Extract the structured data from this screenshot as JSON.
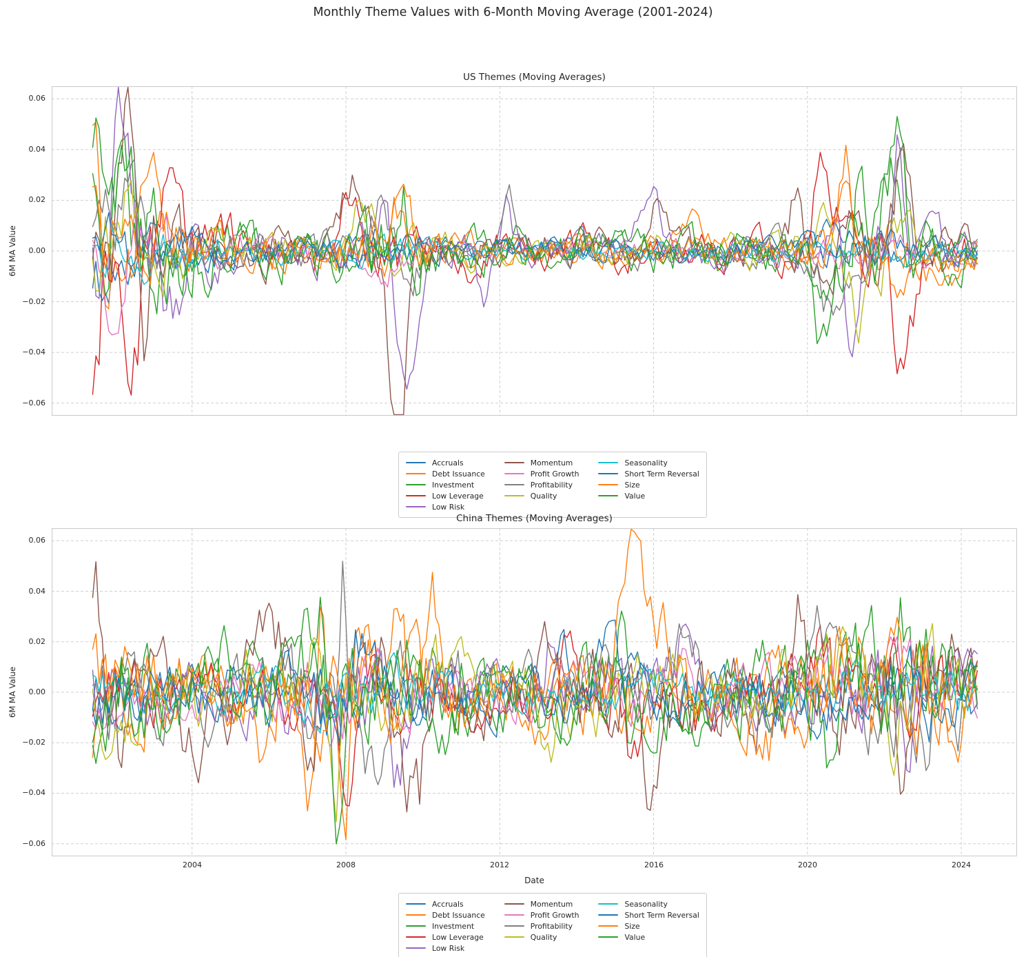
{
  "suptitle": "Monthly Theme Values with 6-Month Moving Average (2001-2024)",
  "chart_data": [
    {
      "type": "line",
      "title": "US Themes (Moving Averages)",
      "ylabel": "6M MA Value",
      "xlabel": "",
      "x_start": 2001.4167,
      "x_end": 2024.4167,
      "points_per_year": 12,
      "xlim": [
        2000.35,
        2025.45
      ],
      "ylim": [
        -0.065,
        0.065
      ],
      "grid": true,
      "legend_position": "below-center",
      "legend_columns": 3,
      "xticks": [
        {
          "v": 2004,
          "label": "2004"
        },
        {
          "v": 2008,
          "label": "2008"
        },
        {
          "v": 2012,
          "label": "2012"
        },
        {
          "v": 2016,
          "label": "2016"
        },
        {
          "v": 2020,
          "label": "2020"
        },
        {
          "v": 2024,
          "label": "2024"
        }
      ],
      "yticks": [
        {
          "v": 0.06,
          "label": "0.06"
        },
        {
          "v": 0.04,
          "label": "0.04"
        },
        {
          "v": 0.02,
          "label": "0.02"
        },
        {
          "v": 0.0,
          "label": "0.00"
        },
        {
          "v": -0.02,
          "label": "−0.02"
        },
        {
          "v": -0.04,
          "label": "−0.04"
        },
        {
          "v": -0.06,
          "label": "−0.06"
        }
      ],
      "seed": 20010,
      "noise_envelope": {
        "base": 0.7,
        "start_k": 1.9,
        "start_tau": 2.0,
        "events": [
          [
            2003.0,
            0.3,
            0.8
          ],
          [
            2009.2,
            0.6,
            0.7
          ],
          [
            2021.5,
            0.8,
            1.1
          ]
        ]
      },
      "series": [
        {
          "name": "Accruals",
          "color": "#1f77b4",
          "amp": 0.0035,
          "anchors": [
            [
              2001.6,
              -0.01,
              0.25
            ],
            [
              2008.6,
              0.008,
              0.3
            ],
            [
              2020.8,
              0.008,
              0.3
            ]
          ]
        },
        {
          "name": "Debt Issuance",
          "color": "#ff7f0e",
          "amp": 0.005,
          "anchors": [
            [
              2001.5,
              0.034,
              0.12
            ],
            [
              2003.0,
              0.031,
              0.25
            ],
            [
              2009.45,
              0.031,
              0.18
            ],
            [
              2016.9,
              0.012,
              0.3
            ],
            [
              2021.0,
              0.034,
              0.18
            ],
            [
              2023.5,
              -0.008,
              0.5
            ]
          ]
        },
        {
          "name": "Investment",
          "color": "#2ca02c",
          "amp": 0.006,
          "anchors": [
            [
              2001.45,
              0.045,
              0.1
            ],
            [
              2002.2,
              0.025,
              0.15
            ],
            [
              2004.9,
              0.012,
              0.3
            ],
            [
              2012.5,
              0.008,
              0.3
            ],
            [
              2020.5,
              -0.025,
              0.2
            ],
            [
              2022.2,
              0.03,
              0.2
            ]
          ]
        },
        {
          "name": "Low Leverage",
          "color": "#d62728",
          "amp": 0.006,
          "anchors": [
            [
              2001.5,
              -0.043,
              0.12
            ],
            [
              2002.35,
              -0.04,
              0.25
            ],
            [
              2003.3,
              0.019,
              0.2
            ],
            [
              2008.05,
              0.018,
              0.25
            ],
            [
              2011.0,
              -0.01,
              0.3
            ],
            [
              2020.3,
              0.034,
              0.18
            ],
            [
              2021.05,
              0.03,
              0.15
            ],
            [
              2022.5,
              -0.048,
              0.25
            ]
          ]
        },
        {
          "name": "Low Risk",
          "color": "#9467bd",
          "amp": 0.006,
          "anchors": [
            [
              2002.2,
              0.051,
              0.2
            ],
            [
              2003.5,
              -0.029,
              0.25
            ],
            [
              2009.0,
              0.041,
              0.13
            ],
            [
              2009.6,
              -0.049,
              0.22
            ],
            [
              2011.6,
              -0.019,
              0.15
            ],
            [
              2012.2,
              0.026,
              0.12
            ],
            [
              2015.9,
              0.021,
              0.25
            ],
            [
              2021.2,
              -0.035,
              0.18
            ],
            [
              2022.4,
              0.04,
              0.13
            ]
          ]
        },
        {
          "name": "Momentum",
          "color": "#8c564b",
          "amp": 0.006,
          "anchors": [
            [
              2001.55,
              0.033,
              0.15
            ],
            [
              2002.35,
              0.05,
              0.18
            ],
            [
              2002.8,
              -0.033,
              0.12
            ],
            [
              2008.2,
              0.025,
              0.35
            ],
            [
              2009.35,
              -0.064,
              0.22
            ],
            [
              2016.2,
              0.018,
              0.25
            ],
            [
              2019.7,
              0.026,
              0.12
            ],
            [
              2022.45,
              0.034,
              0.2
            ]
          ]
        },
        {
          "name": "Profit Growth",
          "color": "#e377c2",
          "amp": 0.0035,
          "anchors": [
            [
              2002.0,
              -0.017,
              0.2
            ],
            [
              2002.55,
              0.016,
              0.12
            ],
            [
              2008.8,
              -0.01,
              0.3
            ]
          ]
        },
        {
          "name": "Profitability",
          "color": "#7f7f7f",
          "amp": 0.005,
          "anchors": [
            [
              2002.35,
              0.032,
              0.2
            ],
            [
              2008.9,
              0.019,
              0.2
            ],
            [
              2009.6,
              -0.027,
              0.2
            ],
            [
              2012.2,
              0.026,
              0.13
            ],
            [
              2020.6,
              -0.02,
              0.2
            ],
            [
              2022.4,
              0.031,
              0.18
            ]
          ]
        },
        {
          "name": "Quality",
          "color": "#bcbd22",
          "amp": 0.005,
          "anchors": [
            [
              2002.3,
              0.014,
              0.2
            ],
            [
              2008.4,
              0.015,
              0.25
            ],
            [
              2020.4,
              0.018,
              0.12
            ],
            [
              2021.35,
              -0.025,
              0.2
            ],
            [
              2022.7,
              0.014,
              0.25
            ]
          ]
        },
        {
          "name": "Seasonality",
          "color": "#17becf",
          "amp": 0.0028,
          "anchors": []
        },
        {
          "name": "Short Term Reversal",
          "color": "#1f77b4",
          "amp": 0.0035,
          "anchors": [
            [
              2001.5,
              0.008,
              0.2
            ]
          ]
        },
        {
          "name": "Size",
          "color": "#ff7f0e",
          "amp": 0.0045,
          "anchors": [
            [
              2001.45,
              0.02,
              0.15
            ],
            [
              2009.3,
              0.019,
              0.25
            ],
            [
              2021.0,
              0.02,
              0.25
            ],
            [
              2022.8,
              -0.012,
              0.7
            ]
          ]
        },
        {
          "name": "Value",
          "color": "#2ca02c",
          "amp": 0.007,
          "anchors": [
            [
              2001.45,
              0.051,
              0.12
            ],
            [
              2002.2,
              0.038,
              0.2
            ],
            [
              2009.45,
              0.027,
              0.15
            ],
            [
              2020.5,
              -0.042,
              0.25
            ],
            [
              2021.35,
              0.027,
              0.15
            ],
            [
              2022.3,
              0.055,
              0.2
            ]
          ]
        }
      ]
    },
    {
      "type": "line",
      "title": "China Themes (Moving Averages)",
      "ylabel": "6M MA Value",
      "xlabel": "Date",
      "x_start": 2001.4167,
      "x_end": 2024.4167,
      "points_per_year": 12,
      "xlim": [
        2000.35,
        2025.45
      ],
      "ylim": [
        -0.065,
        0.065
      ],
      "grid": true,
      "legend_position": "below-center",
      "legend_columns": 3,
      "xticks": [
        {
          "v": 2004,
          "label": "2004"
        },
        {
          "v": 2008,
          "label": "2008"
        },
        {
          "v": 2012,
          "label": "2012"
        },
        {
          "v": 2016,
          "label": "2016"
        },
        {
          "v": 2020,
          "label": "2020"
        },
        {
          "v": 2024,
          "label": "2024"
        }
      ],
      "yticks": [
        {
          "v": 0.06,
          "label": "0.06"
        },
        {
          "v": 0.04,
          "label": "0.04"
        },
        {
          "v": 0.02,
          "label": "0.02"
        },
        {
          "v": 0.0,
          "label": "0.00"
        },
        {
          "v": -0.02,
          "label": "−0.02"
        },
        {
          "v": -0.04,
          "label": "−0.04"
        },
        {
          "v": -0.06,
          "label": "−0.06"
        }
      ],
      "seed": 20020,
      "noise_envelope": {
        "base": 1.0,
        "start_k": 0.5,
        "start_tau": 1.2,
        "events": [
          [
            2007.5,
            0.5,
            1.0
          ],
          [
            2009.8,
            0.3,
            0.8
          ],
          [
            2015.6,
            0.25,
            0.8
          ],
          [
            2021.5,
            0.35,
            1.5
          ],
          [
            2023.2,
            0.3,
            1.5
          ]
        ]
      },
      "series": [
        {
          "name": "Accruals",
          "color": "#1f77b4",
          "amp": 0.005,
          "anchors": [
            [
              2013.6,
              0.018,
              0.2
            ]
          ]
        },
        {
          "name": "Debt Issuance",
          "color": "#ff7f0e",
          "amp": 0.008,
          "anchors": [
            [
              2005.8,
              -0.025,
              0.25
            ],
            [
              2007.0,
              -0.053,
              0.13
            ],
            [
              2007.35,
              0.03,
              0.1
            ],
            [
              2007.95,
              -0.046,
              0.12
            ],
            [
              2008.4,
              0.03,
              0.15
            ],
            [
              2009.3,
              0.037,
              0.2
            ],
            [
              2010.3,
              0.035,
              0.15
            ],
            [
              2013.0,
              -0.02,
              0.3
            ],
            [
              2021.2,
              0.02,
              0.3
            ]
          ]
        },
        {
          "name": "Investment",
          "color": "#2ca02c",
          "amp": 0.008,
          "anchors": [
            [
              2007.3,
              0.025,
              0.3
            ],
            [
              2009.6,
              0.025,
              0.25
            ],
            [
              2015.2,
              0.036,
              0.1
            ],
            [
              2020.3,
              0.02,
              0.2
            ],
            [
              2022.4,
              0.029,
              0.15
            ]
          ]
        },
        {
          "name": "Low Leverage",
          "color": "#d62728",
          "amp": 0.006,
          "anchors": [
            [
              2001.5,
              -0.013,
              0.2
            ],
            [
              2008.05,
              -0.028,
              0.15
            ],
            [
              2013.8,
              0.024,
              0.2
            ],
            [
              2015.45,
              -0.026,
              0.2
            ],
            [
              2017.1,
              -0.014,
              0.4
            ],
            [
              2020.2,
              0.022,
              0.25
            ]
          ]
        },
        {
          "name": "Low Risk",
          "color": "#9467bd",
          "amp": 0.007,
          "anchors": [
            [
              2009.35,
              -0.028,
              0.2
            ],
            [
              2013.4,
              0.023,
              0.15
            ],
            [
              2016.8,
              0.02,
              0.25
            ],
            [
              2022.65,
              -0.026,
              0.15
            ]
          ]
        },
        {
          "name": "Momentum",
          "color": "#8c564b",
          "amp": 0.009,
          "anchors": [
            [
              2001.45,
              0.046,
              0.1
            ],
            [
              2002.2,
              -0.03,
              0.12
            ],
            [
              2004.1,
              -0.019,
              0.3
            ],
            [
              2006.0,
              0.025,
              0.3
            ],
            [
              2009.55,
              -0.031,
              0.2
            ],
            [
              2009.9,
              -0.038,
              0.13
            ],
            [
              2013.2,
              0.028,
              0.25
            ],
            [
              2015.95,
              -0.027,
              0.3
            ],
            [
              2019.8,
              0.025,
              0.2
            ],
            [
              2022.5,
              -0.024,
              0.2
            ]
          ]
        },
        {
          "name": "Profit Growth",
          "color": "#e377c2",
          "amp": 0.006,
          "anchors": [
            [
              2016.6,
              0.015,
              0.3
            ]
          ]
        },
        {
          "name": "Profitability",
          "color": "#7f7f7f",
          "amp": 0.008,
          "anchors": [
            [
              2007.95,
              0.039,
              0.09
            ],
            [
              2008.85,
              -0.029,
              0.25
            ],
            [
              2016.9,
              0.022,
              0.2
            ],
            [
              2020.3,
              0.022,
              0.2
            ],
            [
              2023.4,
              -0.015,
              0.3
            ]
          ]
        },
        {
          "name": "Quality",
          "color": "#bcbd22",
          "amp": 0.008,
          "anchors": [
            [
              2007.8,
              -0.027,
              0.15
            ],
            [
              2013.3,
              -0.022,
              0.2
            ],
            [
              2020.45,
              0.028,
              0.1
            ],
            [
              2022.2,
              -0.019,
              0.2
            ]
          ]
        },
        {
          "name": "Seasonality",
          "color": "#17becf",
          "amp": 0.004,
          "anchors": []
        },
        {
          "name": "Short Term Reversal",
          "color": "#1f77b4",
          "amp": 0.006,
          "anchors": [
            [
              2008.3,
              0.02,
              0.2
            ],
            [
              2014.9,
              0.02,
              0.3
            ]
          ]
        },
        {
          "name": "Size",
          "color": "#ff7f0e",
          "amp": 0.008,
          "anchors": [
            [
              2001.45,
              0.047,
              0.07
            ],
            [
              2015.45,
              0.056,
              0.28
            ],
            [
              2016.2,
              0.027,
              0.35
            ],
            [
              2019.0,
              -0.02,
              0.3
            ],
            [
              2022.35,
              0.029,
              0.18
            ]
          ]
        },
        {
          "name": "Value",
          "color": "#2ca02c",
          "amp": 0.009,
          "anchors": [
            [
              2004.6,
              0.02,
              0.3
            ],
            [
              2007.75,
              -0.046,
              0.12
            ],
            [
              2013.5,
              -0.022,
              0.2
            ],
            [
              2015.1,
              0.03,
              0.12
            ],
            [
              2020.5,
              -0.034,
              0.14
            ],
            [
              2023.9,
              0.018,
              0.3
            ]
          ]
        }
      ]
    }
  ]
}
